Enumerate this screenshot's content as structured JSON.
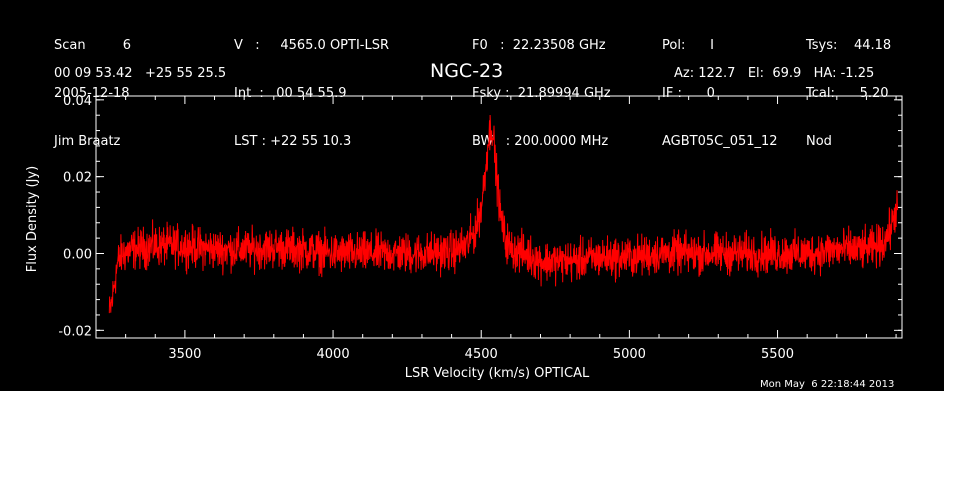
{
  "header": {
    "col1": [
      "Scan         6",
      "2005-12-18",
      "Jim Braatz"
    ],
    "col2": [
      "V   :     4565.0 OPTI-LSR",
      "Int  :   00 54 55.9",
      "LST : +22 55 10.3"
    ],
    "col3": [
      "F0   :  22.23508 GHz",
      "Fsky :  21.89994 GHz",
      "BW   : 200.0000 MHz"
    ],
    "col4": [
      "Pol:      I",
      "IF :      0",
      "AGBT05C_051_12"
    ],
    "col5": [
      "Tsys:    44.18",
      "Tcal:      5.20",
      "Nod"
    ],
    "coords": "00 09 53.42   +25 55 25.5",
    "source": "NGC-23",
    "azel": "Az: 122.7   El:  69.9   HA: -1.25"
  },
  "timestamp": "Mon May  6 22:18:44 2013",
  "colors": {
    "background": "#000000",
    "trace": "#ff0000",
    "axes": "#ffffff"
  },
  "chart_data": {
    "type": "line",
    "title": "NGC-23",
    "xlabel": "LSR Velocity (km/s) OPTICAL",
    "ylabel": "Flux Density (Jy)",
    "xlim": [
      3200,
      5920
    ],
    "ylim": [
      -0.022,
      0.041
    ],
    "xticks": [
      3500,
      4000,
      4500,
      5000,
      5500
    ],
    "xtick_labels": [
      "3500",
      "4000",
      "4500",
      "5000",
      "5500"
    ],
    "yticks": [
      -0.02,
      0.0,
      0.02,
      0.04
    ],
    "ytick_labels": [
      "-0.02",
      "0.00",
      "0.02",
      "0.04"
    ],
    "grid": false,
    "series": [
      {
        "color": "#ff0000",
        "x": [
          3245,
          3255,
          3265,
          3275,
          3290,
          3320,
          3400,
          3500,
          3600,
          3700,
          3800,
          3900,
          4000,
          4100,
          4200,
          4300,
          4400,
          4450,
          4480,
          4500,
          4515,
          4525,
          4535,
          4540,
          4545,
          4555,
          4565,
          4580,
          4600,
          4650,
          4700,
          4800,
          4900,
          5000,
          5100,
          5200,
          5300,
          5400,
          5500,
          5600,
          5700,
          5800,
          5840,
          5860,
          5880,
          5895,
          5905
        ],
        "y": [
          -0.016,
          -0.012,
          -0.006,
          -0.002,
          0.0,
          0.001,
          0.002,
          0.002,
          0.001,
          0.001,
          0.0015,
          0.001,
          0.0,
          0.0,
          0.0,
          0.0,
          0.0005,
          0.002,
          0.006,
          0.012,
          0.022,
          0.03,
          0.034,
          0.031,
          0.026,
          0.018,
          0.01,
          0.004,
          0.001,
          0.0,
          -0.002,
          -0.002,
          -0.001,
          -0.001,
          0.0,
          0.0,
          0.0,
          0.0,
          0.0,
          0.0,
          0.001,
          0.001,
          0.002,
          0.003,
          0.006,
          0.01,
          0.013
        ]
      }
    ]
  }
}
